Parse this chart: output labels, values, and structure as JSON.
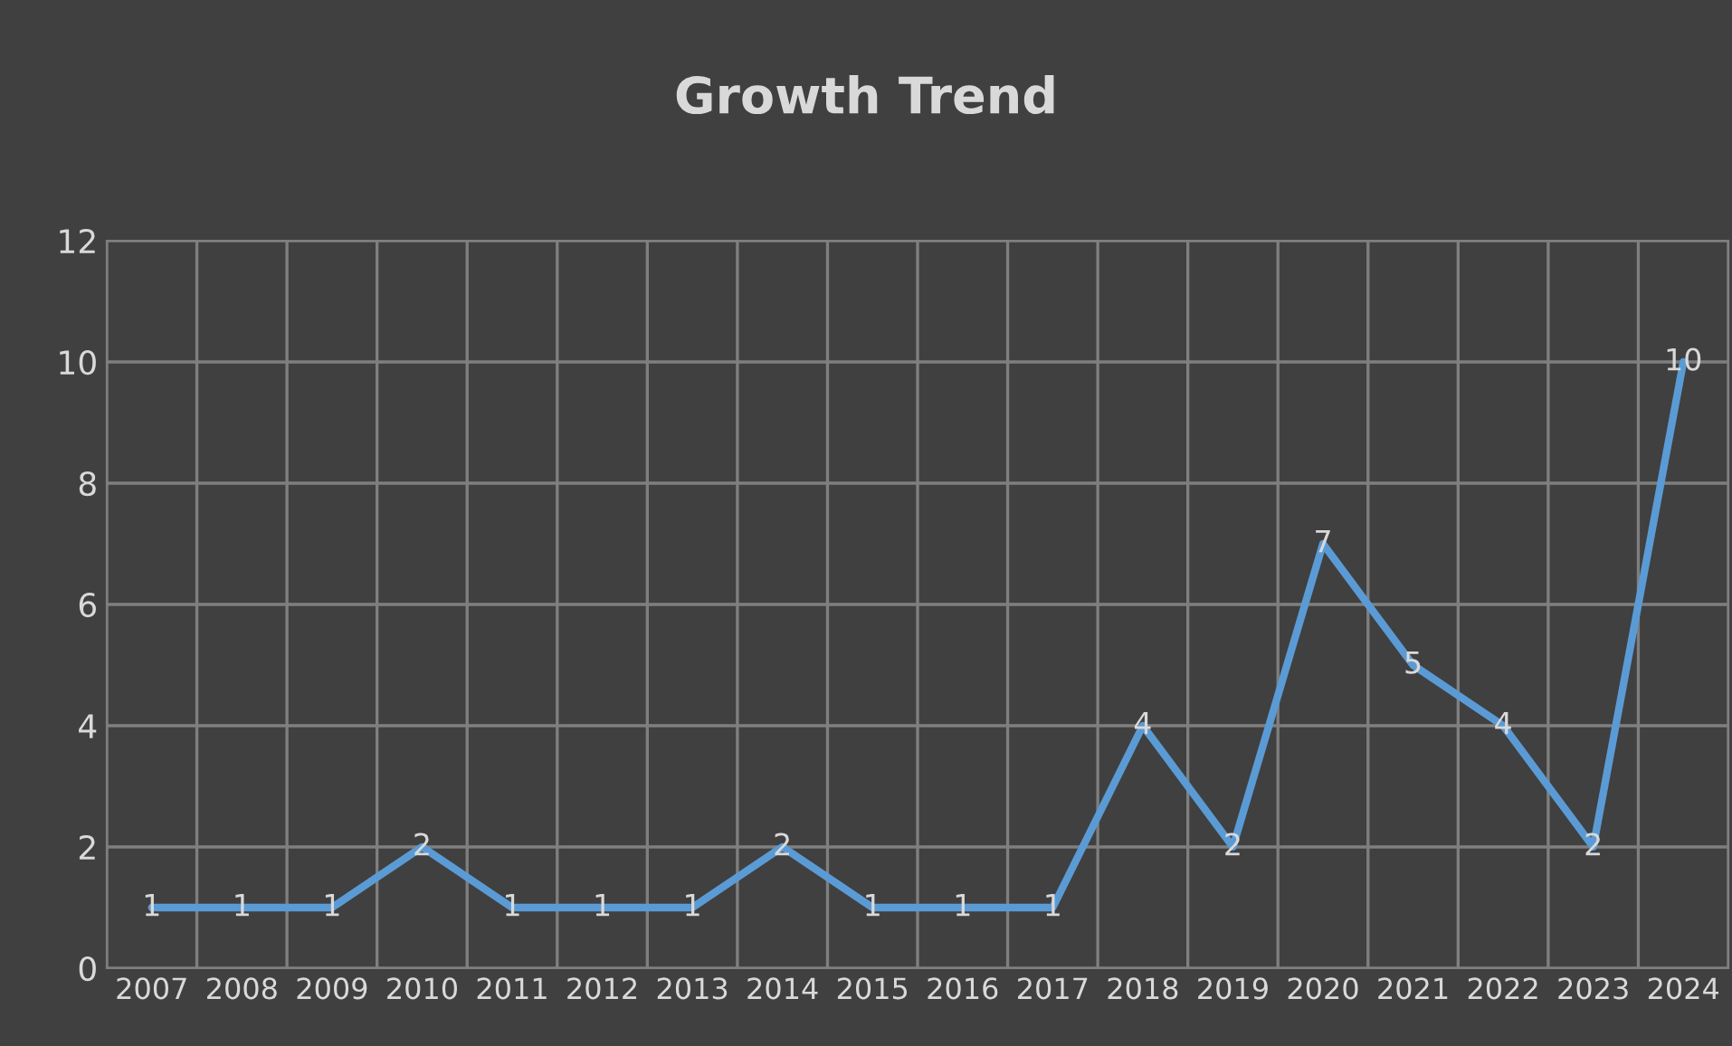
{
  "chart_data": {
    "type": "line",
    "title": "Growth Trend",
    "categories": [
      "2007",
      "2008",
      "2009",
      "2010",
      "2011",
      "2012",
      "2013",
      "2014",
      "2015",
      "2016",
      "2017",
      "2018",
      "2019",
      "2020",
      "2021",
      "2022",
      "2023",
      "2024"
    ],
    "series": [
      {
        "color": "#5b9bd5",
        "values": [
          1,
          1,
          1,
          2,
          1,
          1,
          1,
          2,
          1,
          1,
          1,
          4,
          2,
          7,
          5,
          4,
          2,
          10
        ]
      }
    ],
    "ylim": [
      0,
      12
    ],
    "yticks": [
      0,
      2,
      4,
      6,
      8,
      10,
      12
    ],
    "grid": true,
    "data_labels": true,
    "marker": "none",
    "line_style": "solid",
    "legend": false
  }
}
